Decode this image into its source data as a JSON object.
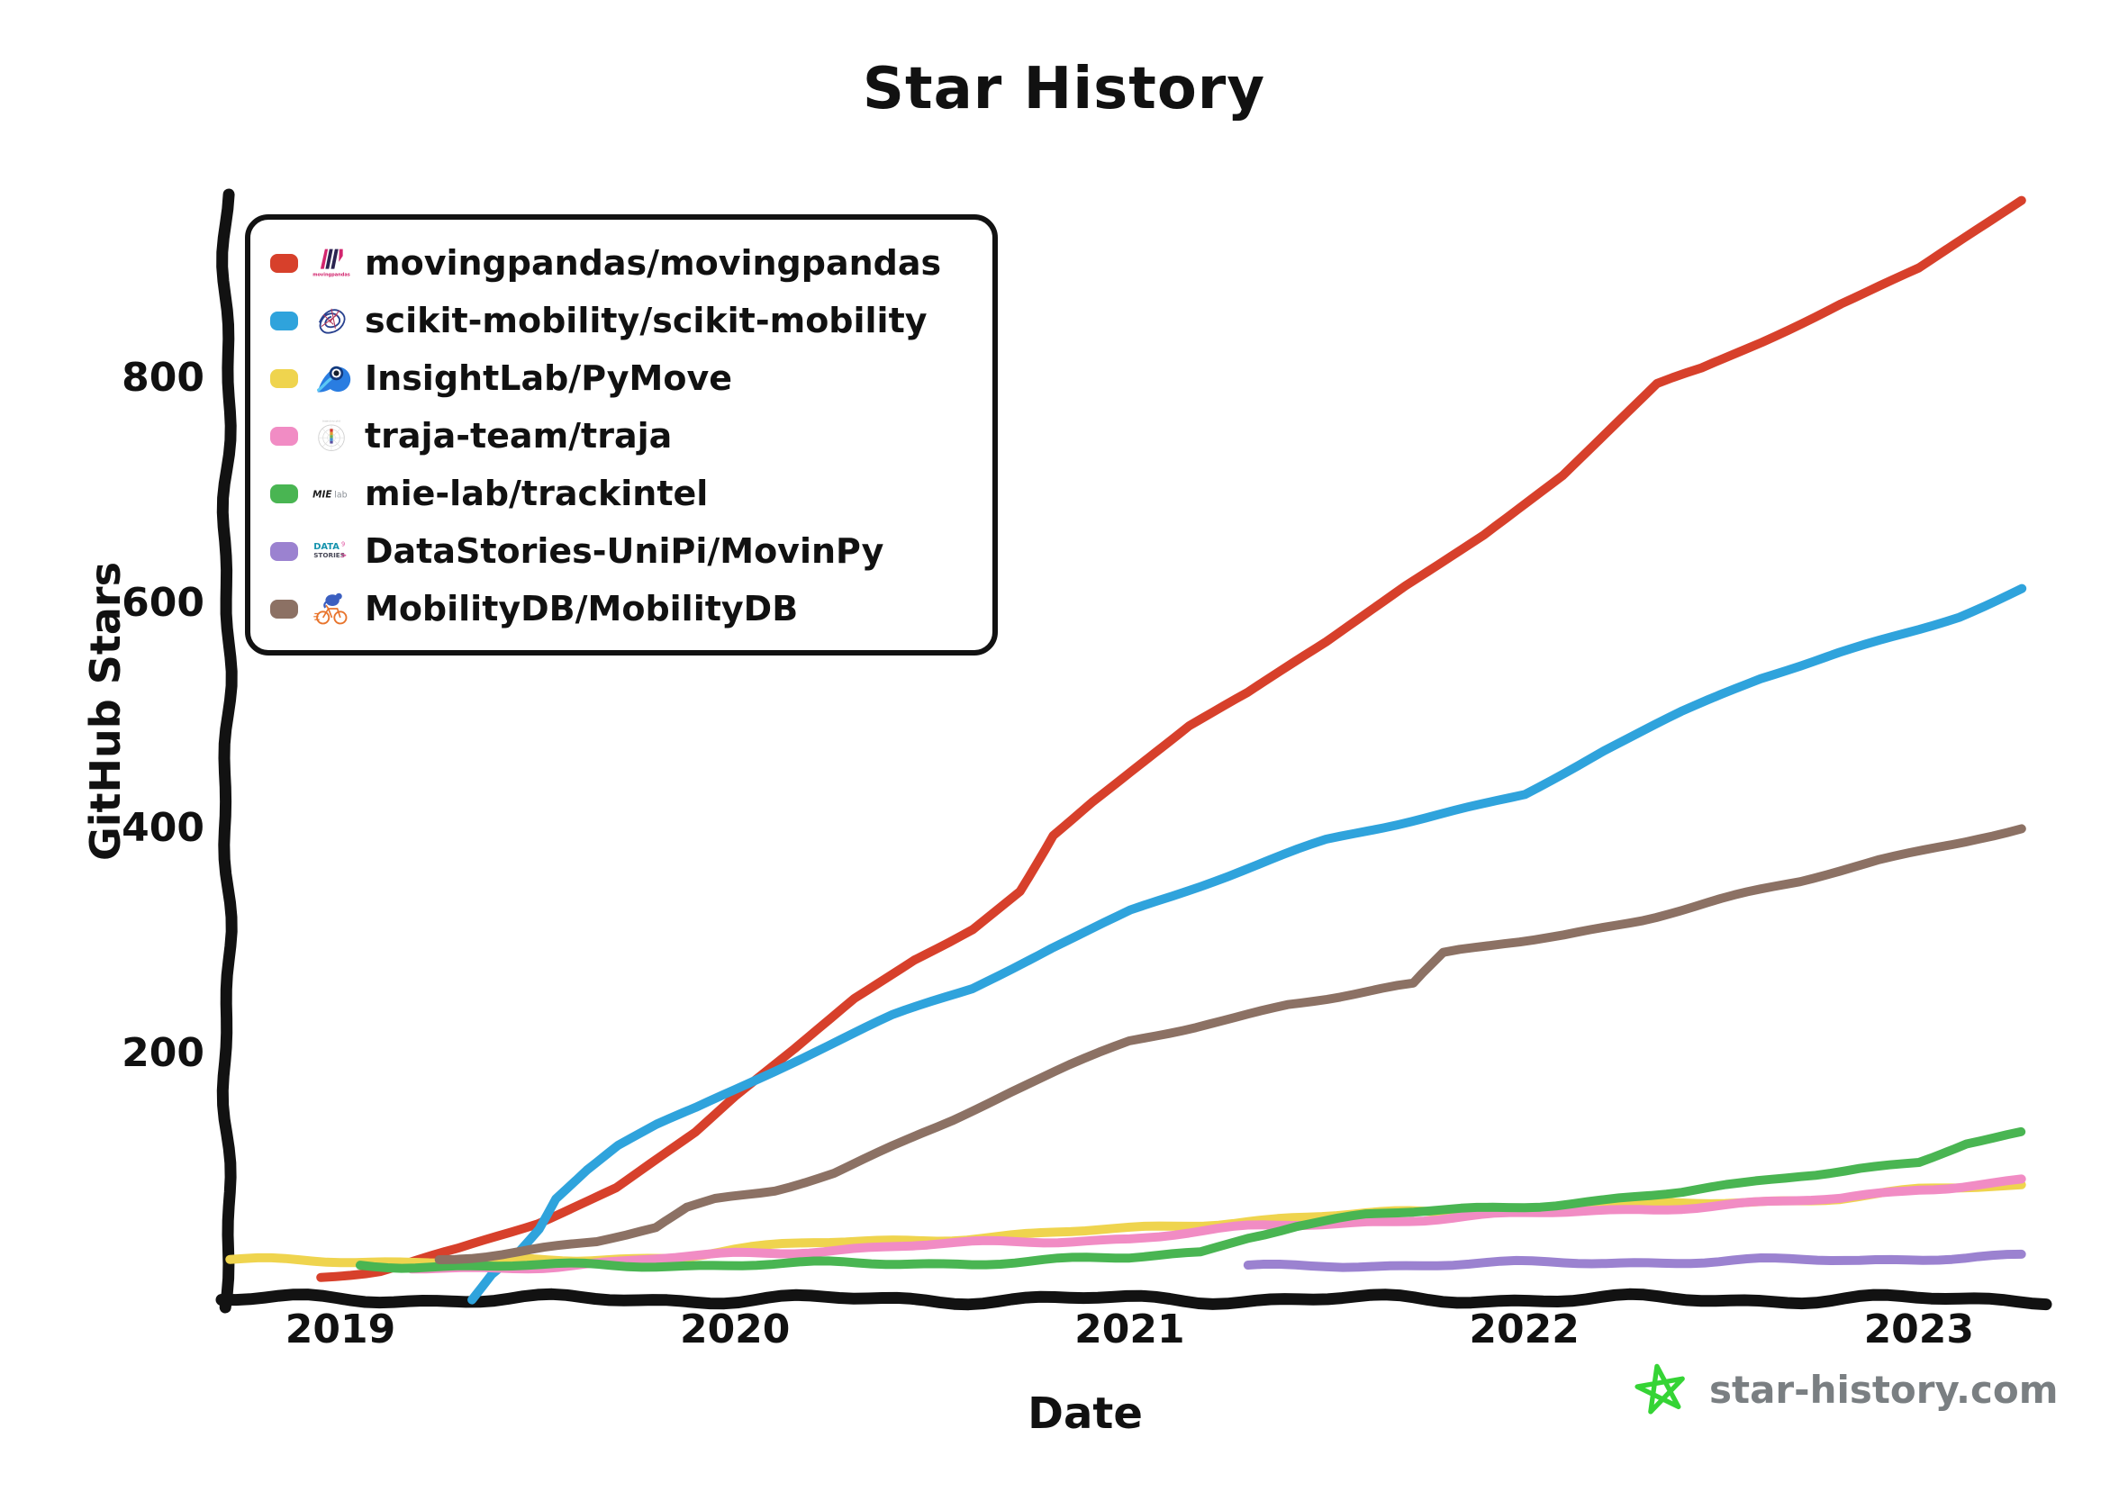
{
  "title": "Star History",
  "axes": {
    "x_label": "Date",
    "y_label": "GitHub Stars",
    "x_tick_labels": [
      "2019",
      "2020",
      "2021",
      "2022",
      "2023"
    ],
    "x_tick_values": [
      2019,
      2020,
      2021,
      2022,
      2023
    ],
    "y_tick_labels": [
      "200",
      "400",
      "600",
      "800"
    ],
    "y_tick_values": [
      200,
      400,
      600,
      800
    ]
  },
  "legend": {
    "position": "upper left",
    "items": [
      {
        "label": "movingpandas/movingpandas",
        "color": "#d7402b",
        "icon": "movingpandas-logo"
      },
      {
        "label": "scikit-mobility/scikit-mobility",
        "color": "#2fa3dc",
        "icon": "scikit-mobility-logo"
      },
      {
        "label": "InsightLab/PyMove",
        "color": "#efd44e",
        "icon": "pymove-logo"
      },
      {
        "label": "traja-team/traja",
        "color": "#f18cc4",
        "icon": "traja-logo"
      },
      {
        "label": "mie-lab/trackintel",
        "color": "#49b552",
        "icon": "mie-lab-logo"
      },
      {
        "label": "DataStories-UniPi/MovinPy",
        "color": "#9b82d0",
        "icon": "datastories-logo"
      },
      {
        "label": "MobilityDB/MobilityDB",
        "color": "#8c7164",
        "icon": "mobilitydb-logo"
      }
    ]
  },
  "watermark": {
    "label": "star-history.com",
    "star_color": "#35d435",
    "text_color": "#7a7f82"
  },
  "chart_data": {
    "type": "line",
    "title": "Star History",
    "xlabel": "Date",
    "ylabel": "GitHub Stars",
    "x_unit": "decimal_year",
    "x_range": [
      2018.72,
      2023.35
    ],
    "y_range": [
      0,
      970
    ],
    "grid": false,
    "legend_position": "upper left",
    "style": "xkcd-handdrawn",
    "series": [
      {
        "name": "movingpandas/movingpandas",
        "color": "#d7402b",
        "x": [
          2018.95,
          2019.1,
          2019.3,
          2019.5,
          2019.7,
          2019.9,
          2020.0,
          2020.15,
          2020.3,
          2020.45,
          2020.6,
          2020.72,
          2020.76,
          2020.8,
          2020.9,
          2021.0,
          2021.15,
          2021.3,
          2021.5,
          2021.7,
          2021.9,
          2022.1,
          2022.34,
          2022.45,
          2022.6,
          2022.8,
          2023.0,
          2023.26
        ],
        "y": [
          2,
          8,
          25,
          48,
          80,
          130,
          162,
          205,
          250,
          285,
          312,
          345,
          370,
          395,
          425,
          452,
          492,
          520,
          565,
          615,
          660,
          712,
          794,
          808,
          833,
          868,
          898,
          958
        ]
      },
      {
        "name": "scikit-mobility/scikit-mobility",
        "color": "#2fa3dc",
        "x": [
          2019.33,
          2019.38,
          2019.45,
          2019.5,
          2019.54,
          2019.62,
          2019.7,
          2019.8,
          2019.9,
          2020.0,
          2020.2,
          2020.4,
          2020.6,
          2020.8,
          2021.0,
          2021.25,
          2021.5,
          2021.75,
          2022.0,
          2022.2,
          2022.4,
          2022.6,
          2022.8,
          2023.0,
          2023.1,
          2023.26
        ],
        "y": [
          -18,
          5,
          25,
          45,
          72,
          98,
          120,
          138,
          152,
          168,
          200,
          232,
          258,
          295,
          328,
          358,
          388,
          410,
          432,
          470,
          502,
          532,
          556,
          578,
          590,
          614
        ]
      },
      {
        "name": "InsightLab/PyMove",
        "color": "#efd44e",
        "x": [
          2018.72,
          2019.0,
          2019.3,
          2019.6,
          2019.85,
          2020.0,
          2020.2,
          2020.4,
          2020.7,
          2021.0,
          2021.3,
          2021.6,
          2022.0,
          2022.4,
          2022.8,
          2023.0,
          2023.26
        ],
        "y": [
          16,
          16,
          15,
          16,
          20,
          26,
          31,
          34,
          38,
          44,
          52,
          57,
          62,
          66,
          72,
          78,
          83
        ]
      },
      {
        "name": "traja-team/traja",
        "color": "#f18cc4",
        "x": [
          2019.18,
          2019.4,
          2019.7,
          2020.0,
          2020.3,
          2020.6,
          2021.0,
          2021.3,
          2021.6,
          2022.0,
          2022.4,
          2022.8,
          2023.0,
          2023.26
        ],
        "y": [
          8,
          10,
          14,
          22,
          27,
          31,
          36,
          45,
          51,
          57,
          64,
          70,
          80,
          88
        ]
      },
      {
        "name": "mie-lab/trackintel",
        "color": "#49b552",
        "x": [
          2019.05,
          2019.4,
          2019.8,
          2020.2,
          2020.6,
          2021.0,
          2021.18,
          2021.3,
          2021.42,
          2021.6,
          2021.8,
          2022.0,
          2022.2,
          2022.4,
          2022.55,
          2022.7,
          2022.85,
          2023.0,
          2023.06,
          2023.12,
          2023.26
        ],
        "y": [
          12,
          11,
          12,
          13,
          14,
          18,
          24,
          38,
          48,
          56,
          60,
          65,
          70,
          76,
          83,
          92,
          99,
          104,
          112,
          120,
          128
        ]
      },
      {
        "name": "DataStories-UniPi/MovinPy",
        "color": "#9b82d0",
        "x": [
          2021.3,
          2021.5,
          2021.7,
          2021.9,
          2022.1,
          2022.35,
          2022.6,
          2022.85,
          2023.05,
          2023.15,
          2023.26
        ],
        "y": [
          10,
          12,
          12,
          13,
          14,
          15,
          16,
          16,
          19,
          20,
          20
        ]
      },
      {
        "name": "MobilityDB/MobilityDB",
        "color": "#8c7164",
        "x": [
          2019.25,
          2019.45,
          2019.65,
          2019.8,
          2019.88,
          2019.95,
          2020.1,
          2020.25,
          2020.4,
          2020.55,
          2020.7,
          2020.85,
          2021.0,
          2021.2,
          2021.4,
          2021.6,
          2021.72,
          2021.8,
          2021.95,
          2022.1,
          2022.3,
          2022.5,
          2022.7,
          2022.9,
          2023.05,
          2023.15,
          2023.26
        ],
        "y": [
          18,
          24,
          32,
          44,
          62,
          70,
          80,
          95,
          118,
          140,
          165,
          188,
          210,
          228,
          244,
          254,
          260,
          288,
          298,
          306,
          320,
          336,
          352,
          372,
          385,
          393,
          400
        ]
      }
    ]
  }
}
